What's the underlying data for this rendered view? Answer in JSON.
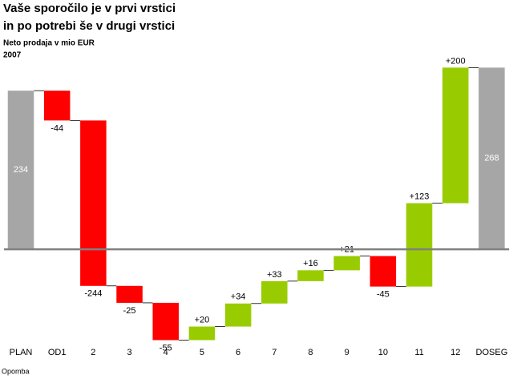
{
  "chart_data": {
    "type": "waterfall",
    "title": "Vaše sporočilo je v prvi vrstici",
    "title_line2": "in po potrebi še v drugi vrstici",
    "subtitle": "Neto prodaja v mio EUR",
    "year": "2007",
    "note": "Opomba",
    "categories": [
      "PLAN",
      "OD1",
      "2",
      "3",
      "4",
      "5",
      "6",
      "7",
      "8",
      "9",
      "10",
      "11",
      "12",
      "DOSEG"
    ],
    "values": [
      234,
      -44,
      -244,
      -25,
      -55,
      20,
      34,
      33,
      16,
      21,
      -45,
      123,
      200,
      268
    ],
    "value_labels": [
      "234",
      "-44",
      "-244",
      "-25",
      "-55",
      "+20",
      "+34",
      "+33",
      "+16",
      "+21",
      "-45",
      "+123",
      "+200",
      "268"
    ],
    "total_color": "#a6a6a6",
    "increase_color": "#99cc00",
    "decrease_color": "#ff0000",
    "ylim": [
      -150,
      285
    ]
  }
}
